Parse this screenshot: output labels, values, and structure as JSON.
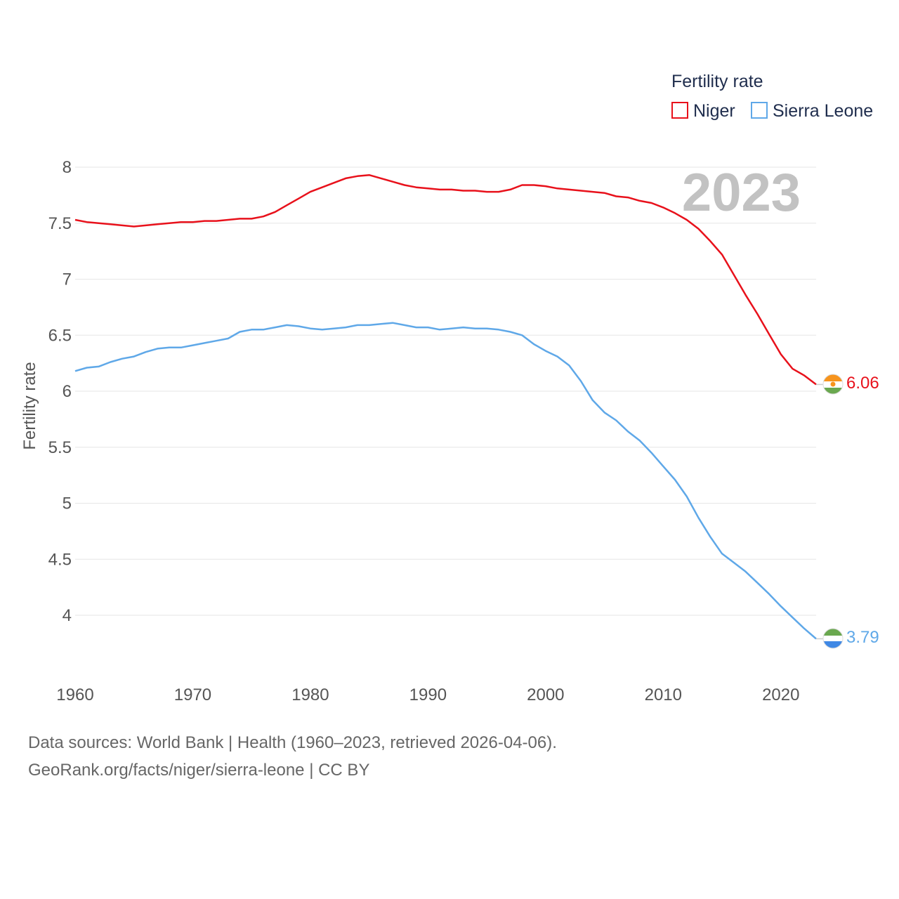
{
  "chart_data": {
    "type": "line",
    "ylabel": "Fertility rate",
    "xlabel": "",
    "xlim": [
      1960,
      2023
    ],
    "ylim": [
      3.6,
      8.2
    ],
    "x_ticks": [
      1960,
      1970,
      1980,
      1990,
      2000,
      2010,
      2020
    ],
    "y_ticks": [
      4,
      4.5,
      5,
      5.5,
      6,
      6.5,
      7,
      7.5,
      8
    ],
    "y_tick_labels": [
      "4",
      "4.5",
      "5",
      "5.5",
      "6",
      "6.5",
      "7",
      "7.5",
      "8"
    ],
    "year_label": "2023",
    "legend": {
      "title": "Fertility rate",
      "placement": "top-right"
    },
    "x": [
      1960,
      1961,
      1962,
      1963,
      1964,
      1965,
      1966,
      1967,
      1968,
      1969,
      1970,
      1971,
      1972,
      1973,
      1974,
      1975,
      1976,
      1977,
      1978,
      1979,
      1980,
      1981,
      1982,
      1983,
      1984,
      1985,
      1986,
      1987,
      1988,
      1989,
      1990,
      1991,
      1992,
      1993,
      1994,
      1995,
      1996,
      1997,
      1998,
      1999,
      2000,
      2001,
      2002,
      2003,
      2004,
      2005,
      2006,
      2007,
      2008,
      2009,
      2010,
      2011,
      2012,
      2013,
      2014,
      2015,
      2016,
      2017,
      2018,
      2019,
      2020,
      2021,
      2022,
      2023
    ],
    "series": [
      {
        "name": "Niger",
        "color": "#e8111b",
        "end_value_label": "6.06",
        "values": [
          7.53,
          7.51,
          7.5,
          7.49,
          7.48,
          7.47,
          7.48,
          7.49,
          7.5,
          7.51,
          7.51,
          7.52,
          7.52,
          7.53,
          7.54,
          7.54,
          7.56,
          7.6,
          7.66,
          7.72,
          7.78,
          7.82,
          7.86,
          7.9,
          7.92,
          7.93,
          7.9,
          7.87,
          7.84,
          7.82,
          7.81,
          7.8,
          7.8,
          7.79,
          7.79,
          7.78,
          7.78,
          7.8,
          7.84,
          7.84,
          7.83,
          7.81,
          7.8,
          7.79,
          7.78,
          7.77,
          7.74,
          7.73,
          7.7,
          7.68,
          7.64,
          7.59,
          7.53,
          7.45,
          7.34,
          7.22,
          7.04,
          6.86,
          6.69,
          6.51,
          6.33,
          6.2,
          6.14,
          6.06
        ]
      },
      {
        "name": "Sierra Leone",
        "color": "#5fa8e8",
        "end_value_label": "3.79",
        "values": [
          6.18,
          6.21,
          6.22,
          6.26,
          6.29,
          6.31,
          6.35,
          6.38,
          6.39,
          6.39,
          6.41,
          6.43,
          6.45,
          6.47,
          6.53,
          6.55,
          6.55,
          6.57,
          6.59,
          6.58,
          6.56,
          6.55,
          6.56,
          6.57,
          6.59,
          6.59,
          6.6,
          6.61,
          6.59,
          6.57,
          6.57,
          6.55,
          6.56,
          6.57,
          6.56,
          6.56,
          6.55,
          6.53,
          6.5,
          6.42,
          6.36,
          6.31,
          6.23,
          6.09,
          5.92,
          5.81,
          5.74,
          5.64,
          5.56,
          5.45,
          5.33,
          5.21,
          5.06,
          4.87,
          4.7,
          4.55,
          4.47,
          4.39,
          4.29,
          4.19,
          4.08,
          3.98,
          3.88,
          3.79
        ]
      }
    ]
  },
  "footer": {
    "line1": "Data sources: World Bank | Health (1960–2023, retrieved 2026-04-06).",
    "line2": "GeoRank.org/facts/niger/sierra-leone | CC BY"
  },
  "icons": {
    "niger_flag": "niger-flag-icon",
    "sierra_leone_flag": "sierra-leone-flag-icon"
  },
  "flag_colors": {
    "niger": [
      "#f7941d",
      "#ffffff",
      "#6aa84f",
      "#f7941d"
    ],
    "sierra_leone": [
      "#6aa84f",
      "#ffffff",
      "#3f88e5"
    ]
  }
}
